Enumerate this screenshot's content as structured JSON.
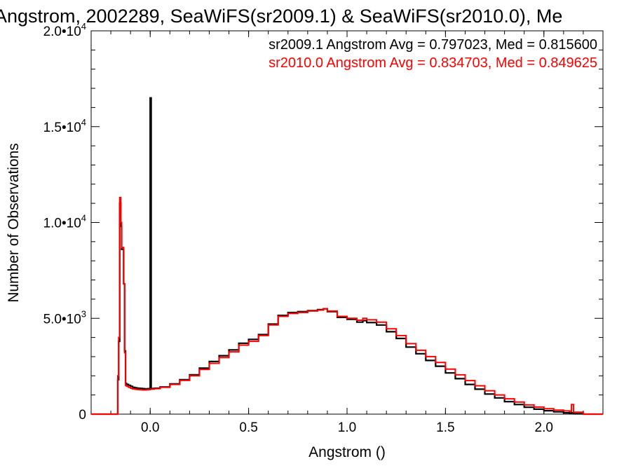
{
  "colors": {
    "sr2009": "#000000",
    "sr2010": "#ff0000",
    "background": "#ffffff"
  },
  "chart_data": {
    "type": "line",
    "title": "Angstrom, 2002289, SeaWiFS(sr2009.1) & SeaWiFS(sr2010.0), Me",
    "xlabel": "Angstrom ()",
    "ylabel": "Number of Observations",
    "xlim": [
      -0.3,
      2.3
    ],
    "ylim": [
      0,
      20000
    ],
    "xticks": [
      0.0,
      0.5,
      1.0,
      1.5,
      2.0
    ],
    "xtick_labels": [
      "0.0",
      "0.5",
      "1.0",
      "1.5",
      "2.0"
    ],
    "yticks": [
      {
        "value": 0,
        "mantissa": "0",
        "exponent": ""
      },
      {
        "value": 5000,
        "mantissa": "5.0•10",
        "exponent": "3"
      },
      {
        "value": 10000,
        "mantissa": "1.0•10",
        "exponent": "4"
      },
      {
        "value": 15000,
        "mantissa": "1.5•10",
        "exponent": "4"
      },
      {
        "value": 20000,
        "mantissa": "2.0•10",
        "exponent": "4"
      }
    ],
    "grid": false,
    "legend_placement": "top-right",
    "legend": [
      "sr2009.1 Angstrom Avg = 0.797023, Med = 0.815600",
      "sr2010.0 Angstrom Avg = 0.834703, Med = 0.849625"
    ],
    "series": [
      {
        "name": "sr2009.1",
        "color": "#000000",
        "points": [
          [
            -0.3,
            0
          ],
          [
            -0.17,
            0
          ],
          [
            -0.165,
            1800
          ],
          [
            -0.16,
            3800
          ],
          [
            -0.155,
            11000
          ],
          [
            -0.15,
            9800
          ],
          [
            -0.145,
            8600
          ],
          [
            -0.14,
            8600
          ],
          [
            -0.135,
            6800
          ],
          [
            -0.13,
            3300
          ],
          [
            -0.125,
            1600
          ],
          [
            -0.12,
            1550
          ],
          [
            -0.11,
            1500
          ],
          [
            -0.1,
            1450
          ],
          [
            -0.09,
            1400
          ],
          [
            -0.08,
            1380
          ],
          [
            -0.07,
            1360
          ],
          [
            -0.06,
            1350
          ],
          [
            -0.05,
            1340
          ],
          [
            -0.04,
            1330
          ],
          [
            -0.03,
            1320
          ],
          [
            -0.02,
            1320
          ],
          [
            -0.01,
            1330
          ],
          [
            -0.005,
            1330
          ],
          [
            0.0,
            16500
          ],
          [
            0.005,
            1330
          ],
          [
            0.02,
            1350
          ],
          [
            0.05,
            1420
          ],
          [
            0.1,
            1580
          ],
          [
            0.15,
            1800
          ],
          [
            0.2,
            2050
          ],
          [
            0.25,
            2400
          ],
          [
            0.3,
            2750
          ],
          [
            0.35,
            3050
          ],
          [
            0.4,
            3350
          ],
          [
            0.45,
            3700
          ],
          [
            0.5,
            3900
          ],
          [
            0.55,
            4150
          ],
          [
            0.6,
            4700
          ],
          [
            0.65,
            5150
          ],
          [
            0.7,
            5300
          ],
          [
            0.75,
            5350
          ],
          [
            0.8,
            5400
          ],
          [
            0.85,
            5450
          ],
          [
            0.88,
            5500
          ],
          [
            0.9,
            5350
          ],
          [
            0.95,
            5050
          ],
          [
            1.0,
            4950
          ],
          [
            1.05,
            4800
          ],
          [
            1.08,
            4880
          ],
          [
            1.1,
            4780
          ],
          [
            1.15,
            4650
          ],
          [
            1.2,
            4300
          ],
          [
            1.25,
            3950
          ],
          [
            1.3,
            3500
          ],
          [
            1.35,
            3150
          ],
          [
            1.4,
            2800
          ],
          [
            1.45,
            2500
          ],
          [
            1.5,
            2150
          ],
          [
            1.55,
            1850
          ],
          [
            1.6,
            1550
          ],
          [
            1.65,
            1300
          ],
          [
            1.7,
            1050
          ],
          [
            1.75,
            850
          ],
          [
            1.8,
            650
          ],
          [
            1.85,
            500
          ],
          [
            1.9,
            360
          ],
          [
            1.95,
            260
          ],
          [
            2.0,
            180
          ],
          [
            2.05,
            120
          ],
          [
            2.1,
            70
          ],
          [
            2.13,
            40
          ],
          [
            2.14,
            70
          ],
          [
            2.15,
            20
          ],
          [
            2.2,
            0
          ],
          [
            2.3,
            0
          ]
        ]
      },
      {
        "name": "sr2010.0",
        "color": "#ff0000",
        "points": [
          [
            -0.3,
            0
          ],
          [
            -0.17,
            0
          ],
          [
            -0.165,
            2000
          ],
          [
            -0.16,
            4000
          ],
          [
            -0.155,
            11300
          ],
          [
            -0.15,
            10000
          ],
          [
            -0.145,
            8700
          ],
          [
            -0.14,
            8700
          ],
          [
            -0.135,
            6800
          ],
          [
            -0.13,
            3200
          ],
          [
            -0.125,
            1500
          ],
          [
            -0.12,
            1450
          ],
          [
            -0.11,
            1400
          ],
          [
            -0.1,
            1350
          ],
          [
            -0.09,
            1320
          ],
          [
            -0.08,
            1300
          ],
          [
            -0.07,
            1290
          ],
          [
            -0.06,
            1280
          ],
          [
            -0.05,
            1270
          ],
          [
            -0.04,
            1260
          ],
          [
            -0.03,
            1260
          ],
          [
            -0.02,
            1270
          ],
          [
            -0.01,
            1280
          ],
          [
            0.0,
            1300
          ],
          [
            0.02,
            1330
          ],
          [
            0.05,
            1400
          ],
          [
            0.1,
            1550
          ],
          [
            0.15,
            1760
          ],
          [
            0.2,
            2000
          ],
          [
            0.25,
            2330
          ],
          [
            0.3,
            2650
          ],
          [
            0.35,
            2950
          ],
          [
            0.4,
            3250
          ],
          [
            0.45,
            3600
          ],
          [
            0.5,
            3800
          ],
          [
            0.55,
            4100
          ],
          [
            0.6,
            4650
          ],
          [
            0.65,
            5100
          ],
          [
            0.7,
            5250
          ],
          [
            0.75,
            5300
          ],
          [
            0.8,
            5380
          ],
          [
            0.85,
            5430
          ],
          [
            0.88,
            5500
          ],
          [
            0.9,
            5380
          ],
          [
            0.95,
            5100
          ],
          [
            1.0,
            5000
          ],
          [
            1.05,
            4900
          ],
          [
            1.08,
            5000
          ],
          [
            1.1,
            4920
          ],
          [
            1.15,
            4800
          ],
          [
            1.2,
            4450
          ],
          [
            1.25,
            4100
          ],
          [
            1.3,
            3680
          ],
          [
            1.35,
            3330
          ],
          [
            1.4,
            3000
          ],
          [
            1.45,
            2700
          ],
          [
            1.5,
            2350
          ],
          [
            1.55,
            2050
          ],
          [
            1.6,
            1750
          ],
          [
            1.65,
            1480
          ],
          [
            1.7,
            1220
          ],
          [
            1.75,
            1000
          ],
          [
            1.8,
            800
          ],
          [
            1.85,
            630
          ],
          [
            1.9,
            480
          ],
          [
            1.95,
            370
          ],
          [
            2.0,
            280
          ],
          [
            2.05,
            210
          ],
          [
            2.1,
            170
          ],
          [
            2.13,
            130
          ],
          [
            2.14,
            500
          ],
          [
            2.15,
            100
          ],
          [
            2.2,
            0
          ],
          [
            2.3,
            0
          ]
        ]
      }
    ]
  }
}
